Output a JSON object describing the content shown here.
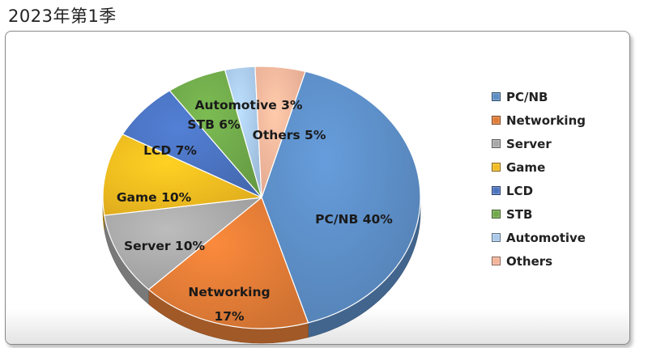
{
  "page_title": "2023年第1季",
  "chart_data": {
    "type": "pie",
    "title": "2023年第1季",
    "categories": [
      "PC/NB",
      "Networking",
      "Server",
      "Game",
      "LCD",
      "STB",
      "Automotive",
      "Others"
    ],
    "values": [
      40,
      17,
      10,
      10,
      7,
      6,
      3,
      5
    ],
    "unit": "%",
    "data_labels": [
      [
        "PC/NB 40%"
      ],
      [
        "Networking",
        "17%"
      ],
      [
        "Server 10%"
      ],
      [
        "Game 10%"
      ],
      [
        "LCD 7%"
      ],
      [
        "STB 6%"
      ],
      [
        "Automotive 3%"
      ],
      [
        "Others 5%"
      ]
    ],
    "colors": [
      "#5b8cc4",
      "#e07b36",
      "#a8a8a8",
      "#f2bb1f",
      "#4a72bf",
      "#6fa84a",
      "#a9c8ea",
      "#f4b49a"
    ],
    "legend": {
      "placement": "right",
      "entries": [
        "PC/NB",
        "Networking",
        "Server",
        "Game",
        "LCD",
        "STB",
        "Automotive",
        "Others"
      ]
    },
    "style": "3d"
  }
}
